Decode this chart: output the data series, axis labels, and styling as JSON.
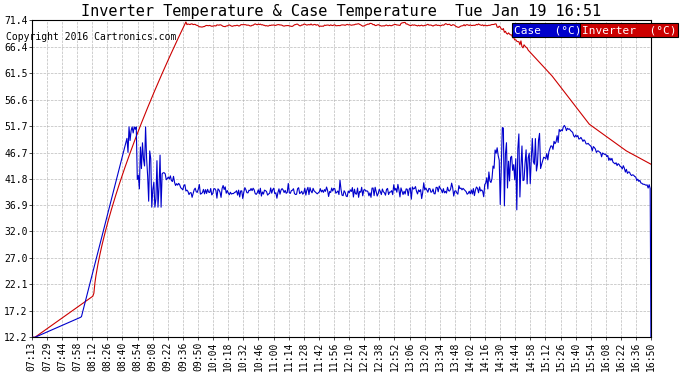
{
  "title": "Inverter Temperature & Case Temperature  Tue Jan 19 16:51",
  "copyright": "Copyright 2016 Cartronics.com",
  "yticks": [
    12.2,
    17.2,
    22.1,
    27.0,
    32.0,
    36.9,
    41.8,
    46.7,
    51.7,
    56.6,
    61.5,
    66.4,
    71.4
  ],
  "ymin": 12.2,
  "ymax": 71.4,
  "xtick_labels": [
    "07:13",
    "07:29",
    "07:44",
    "07:58",
    "08:12",
    "08:26",
    "08:40",
    "08:54",
    "09:08",
    "09:22",
    "09:36",
    "09:50",
    "10:04",
    "10:18",
    "10:32",
    "10:46",
    "11:00",
    "11:14",
    "11:28",
    "11:42",
    "11:56",
    "12:10",
    "12:24",
    "12:38",
    "12:52",
    "13:06",
    "13:20",
    "13:34",
    "13:48",
    "14:02",
    "14:16",
    "14:30",
    "14:44",
    "14:58",
    "15:12",
    "15:26",
    "15:40",
    "15:54",
    "16:08",
    "16:22",
    "16:36",
    "16:50"
  ],
  "case_color": "#cc0000",
  "inverter_color": "#0000cc",
  "background_color": "#ffffff",
  "grid_color": "#aaaaaa",
  "legend_case_bg": "#0000cc",
  "legend_inv_bg": "#cc0000",
  "title_fontsize": 11,
  "axis_fontsize": 7,
  "copyright_fontsize": 7,
  "legend_fontsize": 8
}
